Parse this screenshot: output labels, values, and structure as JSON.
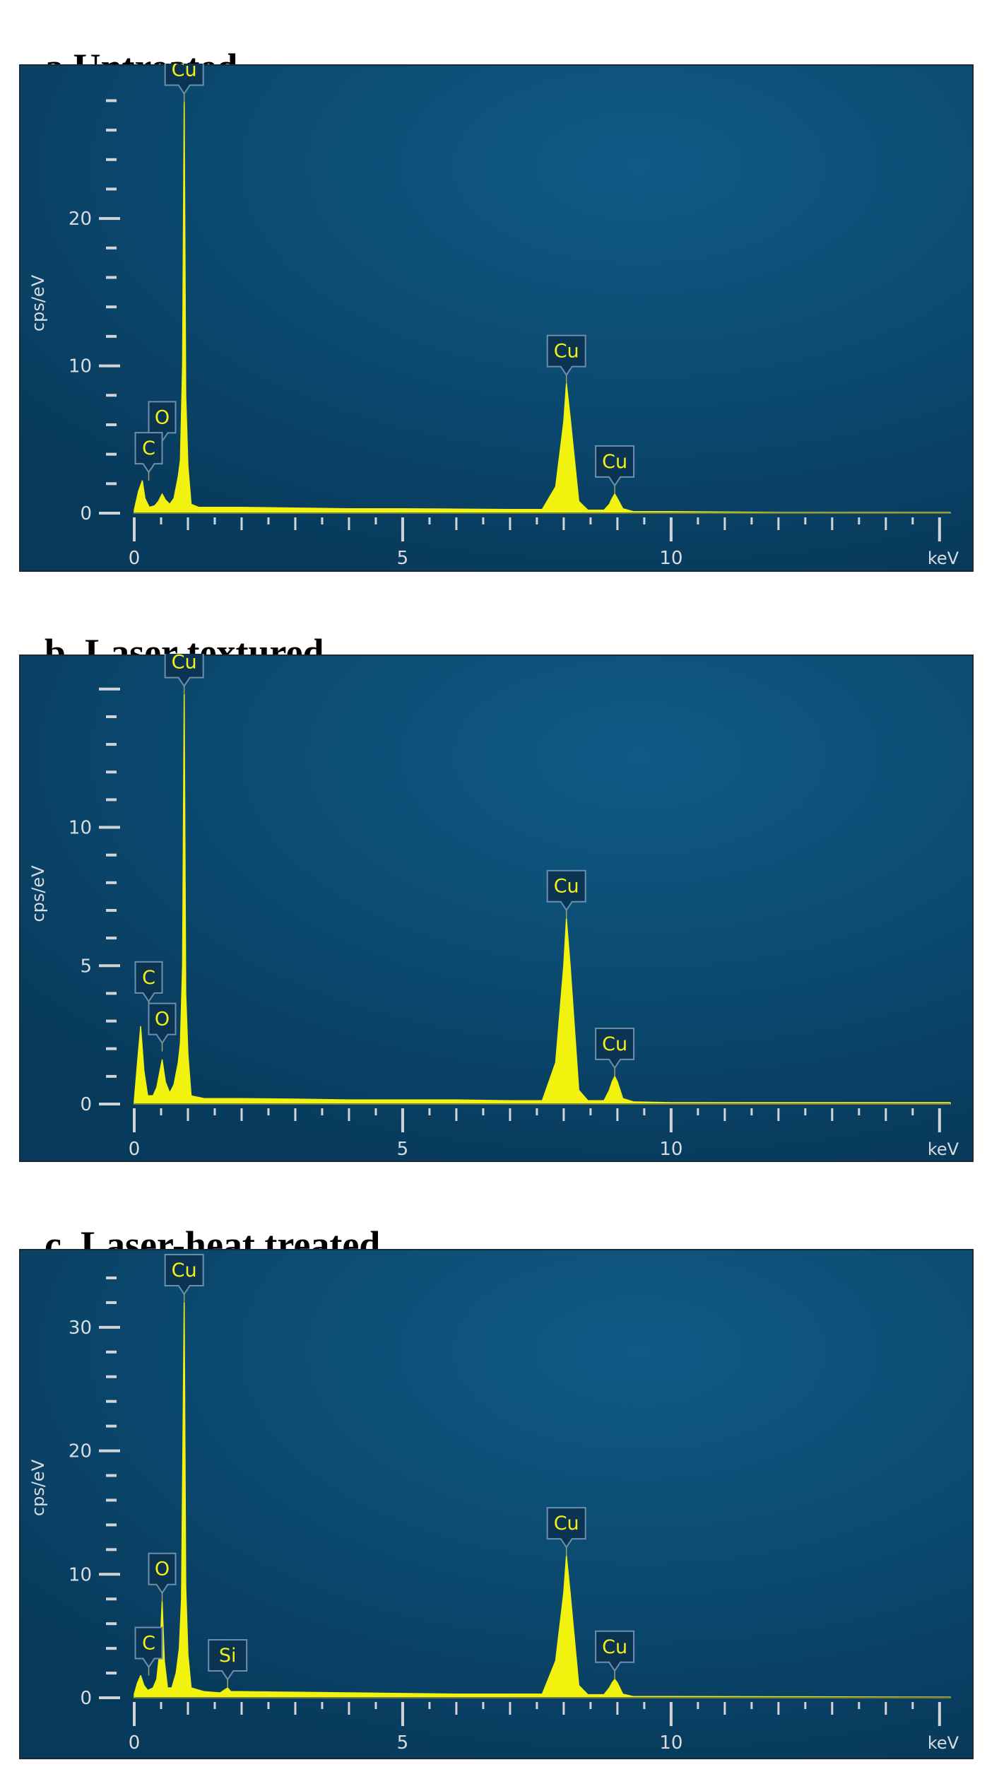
{
  "chart_data": [
    {
      "type": "line",
      "panel_label": "a",
      "title": "Untreated",
      "xlabel": "keV",
      "ylabel": "cps/eV",
      "xlim": [
        0,
        15.2
      ],
      "ylim": [
        0,
        28.5
      ],
      "x_ticks": [
        "0",
        "5",
        "10"
      ],
      "y_ticks": [
        "0",
        "10",
        "20"
      ],
      "series": [
        {
          "values": [
            [
              0.0,
              0.2
            ],
            [
              0.08,
              1.5
            ],
            [
              0.15,
              2.2
            ],
            [
              0.2,
              1.0
            ],
            [
              0.28,
              0.4
            ],
            [
              0.38,
              0.5
            ],
            [
              0.45,
              0.8
            ],
            [
              0.52,
              1.3
            ],
            [
              0.58,
              0.9
            ],
            [
              0.66,
              0.6
            ],
            [
              0.74,
              1.0
            ],
            [
              0.82,
              2.5
            ],
            [
              0.86,
              3.6
            ],
            [
              0.9,
              10.0
            ],
            [
              0.93,
              27.9
            ],
            [
              0.96,
              8.0
            ],
            [
              1.0,
              3.2
            ],
            [
              1.06,
              0.6
            ],
            [
              1.2,
              0.4
            ],
            [
              2.0,
              0.4
            ],
            [
              3.0,
              0.35
            ],
            [
              4.0,
              0.3
            ],
            [
              5.0,
              0.3
            ],
            [
              6.0,
              0.28
            ],
            [
              7.0,
              0.25
            ],
            [
              7.6,
              0.25
            ],
            [
              7.85,
              1.8
            ],
            [
              8.0,
              6.2
            ],
            [
              8.05,
              8.8
            ],
            [
              8.12,
              6.5
            ],
            [
              8.28,
              0.8
            ],
            [
              8.45,
              0.2
            ],
            [
              8.75,
              0.2
            ],
            [
              8.85,
              0.6
            ],
            [
              8.9,
              1.0
            ],
            [
              8.95,
              1.3
            ],
            [
              9.0,
              1.0
            ],
            [
              9.1,
              0.3
            ],
            [
              9.3,
              0.1
            ],
            [
              10.0,
              0.1
            ],
            [
              12.0,
              0.05
            ],
            [
              15.2,
              0.05
            ]
          ]
        }
      ],
      "peaks": [
        {
          "label": "Cu",
          "x": 0.93,
          "y": 27.9
        },
        {
          "label": "O",
          "x": 0.52,
          "y": 4.3
        },
        {
          "label": "C",
          "x": 0.27,
          "y": 2.2
        },
        {
          "label": "Cu",
          "x": 8.05,
          "y": 8.8
        },
        {
          "label": "Cu",
          "x": 8.95,
          "y": 1.3
        }
      ]
    },
    {
      "type": "line",
      "panel_label": "b",
      "title": "Laser textured",
      "xlabel": "keV",
      "ylabel": "cps/eV",
      "xlim": [
        0,
        15.2
      ],
      "ylim": [
        0,
        15.2
      ],
      "x_ticks": [
        "0",
        "5",
        "10"
      ],
      "y_ticks": [
        "0",
        "5",
        "10"
      ],
      "series": [
        {
          "values": [
            [
              0.0,
              0.1
            ],
            [
              0.06,
              1.5
            ],
            [
              0.12,
              2.8
            ],
            [
              0.18,
              1.2
            ],
            [
              0.25,
              0.3
            ],
            [
              0.35,
              0.3
            ],
            [
              0.42,
              0.6
            ],
            [
              0.52,
              1.6
            ],
            [
              0.58,
              0.8
            ],
            [
              0.66,
              0.4
            ],
            [
              0.74,
              0.7
            ],
            [
              0.82,
              1.5
            ],
            [
              0.86,
              2.2
            ],
            [
              0.9,
              5.0
            ],
            [
              0.93,
              14.8
            ],
            [
              0.96,
              4.0
            ],
            [
              1.0,
              1.8
            ],
            [
              1.06,
              0.3
            ],
            [
              1.3,
              0.2
            ],
            [
              2.0,
              0.2
            ],
            [
              3.0,
              0.18
            ],
            [
              4.0,
              0.15
            ],
            [
              5.0,
              0.15
            ],
            [
              6.0,
              0.15
            ],
            [
              7.0,
              0.12
            ],
            [
              7.6,
              0.12
            ],
            [
              7.85,
              1.5
            ],
            [
              8.0,
              5.0
            ],
            [
              8.05,
              6.7
            ],
            [
              8.12,
              5.0
            ],
            [
              8.28,
              0.5
            ],
            [
              8.45,
              0.12
            ],
            [
              8.75,
              0.12
            ],
            [
              8.85,
              0.5
            ],
            [
              8.9,
              0.8
            ],
            [
              8.95,
              1.0
            ],
            [
              9.0,
              0.8
            ],
            [
              9.1,
              0.2
            ],
            [
              9.3,
              0.08
            ],
            [
              10.0,
              0.05
            ],
            [
              12.0,
              0.05
            ],
            [
              15.2,
              0.05
            ]
          ]
        }
      ],
      "peaks": [
        {
          "label": "Cu",
          "x": 0.93,
          "y": 14.8
        },
        {
          "label": "C",
          "x": 0.27,
          "y": 3.4
        },
        {
          "label": "O",
          "x": 0.52,
          "y": 1.9
        },
        {
          "label": "Cu",
          "x": 8.05,
          "y": 6.7
        },
        {
          "label": "Cu",
          "x": 8.95,
          "y": 1.0
        }
      ]
    },
    {
      "type": "line",
      "panel_label": "c",
      "title": "Laser-heat treated",
      "xlabel": "keV",
      "ylabel": "cps/eV",
      "xlim": [
        0,
        15.2
      ],
      "ylim": [
        0,
        34.0
      ],
      "x_ticks": [
        "0",
        "5",
        "10"
      ],
      "y_ticks": [
        "0",
        "10",
        "20",
        "30"
      ],
      "series": [
        {
          "values": [
            [
              0.0,
              0.3
            ],
            [
              0.06,
              1.2
            ],
            [
              0.12,
              1.8
            ],
            [
              0.18,
              1.0
            ],
            [
              0.25,
              0.6
            ],
            [
              0.35,
              0.8
            ],
            [
              0.42,
              1.5
            ],
            [
              0.48,
              4.0
            ],
            [
              0.52,
              7.8
            ],
            [
              0.56,
              3.0
            ],
            [
              0.62,
              0.8
            ],
            [
              0.7,
              0.8
            ],
            [
              0.78,
              2.0
            ],
            [
              0.84,
              4.0
            ],
            [
              0.88,
              8.0
            ],
            [
              0.93,
              32.0
            ],
            [
              0.96,
              9.0
            ],
            [
              1.0,
              3.5
            ],
            [
              1.06,
              0.8
            ],
            [
              1.3,
              0.5
            ],
            [
              1.6,
              0.4
            ],
            [
              1.74,
              0.8
            ],
            [
              1.8,
              0.5
            ],
            [
              2.0,
              0.5
            ],
            [
              3.0,
              0.45
            ],
            [
              4.0,
              0.4
            ],
            [
              5.0,
              0.35
            ],
            [
              6.0,
              0.3
            ],
            [
              7.0,
              0.3
            ],
            [
              7.6,
              0.3
            ],
            [
              7.85,
              3.0
            ],
            [
              8.0,
              8.5
            ],
            [
              8.05,
              11.5
            ],
            [
              8.12,
              8.5
            ],
            [
              8.28,
              1.0
            ],
            [
              8.45,
              0.25
            ],
            [
              8.75,
              0.25
            ],
            [
              8.85,
              0.8
            ],
            [
              8.9,
              1.2
            ],
            [
              8.95,
              1.5
            ],
            [
              9.0,
              1.2
            ],
            [
              9.1,
              0.3
            ],
            [
              9.3,
              0.1
            ],
            [
              10.0,
              0.1
            ],
            [
              12.0,
              0.08
            ],
            [
              15.2,
              0.05
            ]
          ]
        }
      ],
      "peaks": [
        {
          "label": "Cu",
          "x": 0.93,
          "y": 32.0
        },
        {
          "label": "O",
          "x": 0.52,
          "y": 7.8
        },
        {
          "label": "C",
          "x": 0.27,
          "y": 1.8
        },
        {
          "label": "Si",
          "x": 1.74,
          "y": 0.8
        },
        {
          "label": "Cu",
          "x": 8.05,
          "y": 11.5
        },
        {
          "label": "Cu",
          "x": 8.95,
          "y": 1.5
        }
      ]
    }
  ]
}
